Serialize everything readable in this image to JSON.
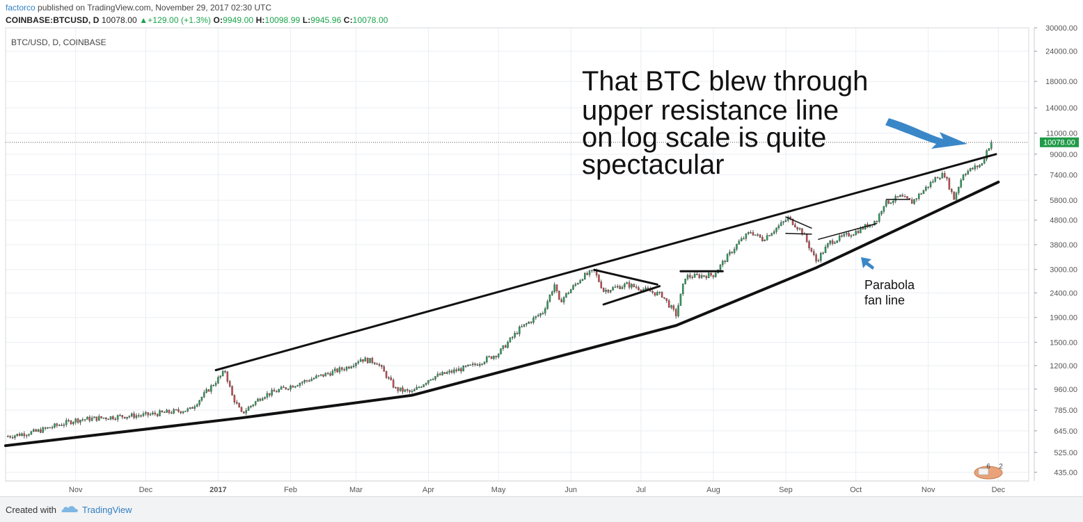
{
  "header": {
    "author": "factorco",
    "published_text": "published on TradingView.com, November 29, 2017 02:30 UTC",
    "symbol": "COINBASE:BTCUSD, D",
    "last": "10078.00",
    "change": "+129.00 (+1.3%)",
    "o_label": "O:",
    "o_value": "9949.00",
    "h_label": "H:",
    "h_value": "10098.99",
    "l_label": "L:",
    "l_value": "9945.96",
    "c_label": "C:",
    "c_value": "10078.00"
  },
  "footer": {
    "created_with": "Created with",
    "brand": "TradingView"
  },
  "annotations": {
    "headline": [
      "That BTC blew through",
      "upper resistance line",
      "on log scale is quite",
      "spectacular"
    ],
    "fan_label": [
      "Parabola",
      "fan line"
    ]
  },
  "chart_data": {
    "type": "candlestick",
    "title": "BTC/USD, D, COINBASE",
    "y_scale": "log",
    "ylim": [
      400,
      30000
    ],
    "y_ticks": [
      435,
      525,
      645,
      785,
      960,
      1200,
      1500,
      1900,
      2400,
      3000,
      3800,
      4800,
      5800,
      7400,
      9000,
      11000,
      14000,
      18000,
      24000,
      30000
    ],
    "y_tick_labels": [
      "435.00",
      "525.00",
      "645.00",
      "785.00",
      "960.00",
      "1200.00",
      "1500.00",
      "1900.00",
      "2400.00",
      "3000.00",
      "3800.00",
      "4800.00",
      "5800.00",
      "7400.00",
      "9000.00",
      "11000.00",
      "14000.00",
      "18000.00",
      "24000.00",
      "30000.00"
    ],
    "x_range": [
      "2016-10-02",
      "2017-12-14"
    ],
    "x_ticks": [
      {
        "date": "2016-11-01",
        "label": "Nov"
      },
      {
        "date": "2016-12-01",
        "label": "Dec"
      },
      {
        "date": "2017-01-01",
        "label": "2017"
      },
      {
        "date": "2017-02-01",
        "label": "Feb"
      },
      {
        "date": "2017-03-01",
        "label": "Mar"
      },
      {
        "date": "2017-04-01",
        "label": "Apr"
      },
      {
        "date": "2017-05-01",
        "label": "May"
      },
      {
        "date": "2017-06-01",
        "label": "Jun"
      },
      {
        "date": "2017-07-01",
        "label": "Jul"
      },
      {
        "date": "2017-08-01",
        "label": "Aug"
      },
      {
        "date": "2017-09-01",
        "label": "Sep"
      },
      {
        "date": "2017-10-01",
        "label": "Oct"
      },
      {
        "date": "2017-11-01",
        "label": "Nov"
      },
      {
        "date": "2017-12-01",
        "label": "Dec"
      }
    ],
    "last_price": 10078,
    "last_price_label": "10078.00",
    "price_path": [
      [
        "2016-10-02",
        610
      ],
      [
        "2016-10-15",
        640
      ],
      [
        "2016-11-01",
        715
      ],
      [
        "2016-11-20",
        740
      ],
      [
        "2016-12-01",
        750
      ],
      [
        "2016-12-20",
        790
      ],
      [
        "2016-12-25",
        890
      ],
      [
        "2017-01-04",
        1140
      ],
      [
        "2017-01-07",
        900
      ],
      [
        "2017-01-11",
        760
      ],
      [
        "2017-01-20",
        900
      ],
      [
        "2017-02-05",
        1020
      ],
      [
        "2017-02-25",
        1180
      ],
      [
        "2017-03-03",
        1280
      ],
      [
        "2017-03-10",
        1240
      ],
      [
        "2017-03-18",
        960
      ],
      [
        "2017-03-25",
        930
      ],
      [
        "2017-04-02",
        1070
      ],
      [
        "2017-04-20",
        1200
      ],
      [
        "2017-05-01",
        1350
      ],
      [
        "2017-05-10",
        1700
      ],
      [
        "2017-05-20",
        2000
      ],
      [
        "2017-05-25",
        2600
      ],
      [
        "2017-05-27",
        2200
      ],
      [
        "2017-06-06",
        2800
      ],
      [
        "2017-06-11",
        2950
      ],
      [
        "2017-06-15",
        2450
      ],
      [
        "2017-06-25",
        2600
      ],
      [
        "2017-07-01",
        2500
      ],
      [
        "2017-07-10",
        2350
      ],
      [
        "2017-07-16",
        1950
      ],
      [
        "2017-07-20",
        2800
      ],
      [
        "2017-08-01",
        2850
      ],
      [
        "2017-08-05",
        3200
      ],
      [
        "2017-08-12",
        3900
      ],
      [
        "2017-08-17",
        4300
      ],
      [
        "2017-08-22",
        4000
      ],
      [
        "2017-08-31",
        4700
      ],
      [
        "2017-09-02",
        4900
      ],
      [
        "2017-09-08",
        4300
      ],
      [
        "2017-09-14",
        3250
      ],
      [
        "2017-09-20",
        3900
      ],
      [
        "2017-10-01",
        4300
      ],
      [
        "2017-10-10",
        4800
      ],
      [
        "2017-10-13",
        5600
      ],
      [
        "2017-10-20",
        6000
      ],
      [
        "2017-10-25",
        5700
      ],
      [
        "2017-11-05",
        7300
      ],
      [
        "2017-11-08",
        7400
      ],
      [
        "2017-11-12",
        5900
      ],
      [
        "2017-11-16",
        7500
      ],
      [
        "2017-11-24",
        8200
      ],
      [
        "2017-11-26",
        9300
      ],
      [
        "2017-11-28",
        10078
      ]
    ],
    "trendlines": [
      {
        "name": "upper-resistance",
        "points": [
          [
            "2016-12-31",
            1150
          ],
          [
            "2017-11-30",
            9000
          ]
        ],
        "width": 3
      },
      {
        "name": "lower-fan",
        "points": [
          [
            "2016-10-02",
            560
          ],
          [
            "2017-01-11",
            730
          ],
          [
            "2017-03-25",
            905
          ],
          [
            "2017-07-16",
            1760
          ],
          [
            "2017-09-14",
            3050
          ],
          [
            "2017-12-01",
            6900
          ]
        ],
        "width": 4
      },
      {
        "name": "triangle-top",
        "points": [
          [
            "2017-06-11",
            2990
          ],
          [
            "2017-07-08",
            2600
          ]
        ],
        "width": 3
      },
      {
        "name": "triangle-bottom",
        "points": [
          [
            "2017-06-15",
            2150
          ],
          [
            "2017-07-09",
            2560
          ]
        ],
        "width": 3
      },
      {
        "name": "flag-top",
        "points": [
          [
            "2017-07-18",
            2950
          ],
          [
            "2017-08-05",
            2950
          ]
        ],
        "width": 3
      },
      {
        "name": "sep-flag-top",
        "points": [
          [
            "2017-09-01",
            4950
          ],
          [
            "2017-09-12",
            4450
          ]
        ],
        "width": 1.5
      },
      {
        "name": "sep-flag-bottom",
        "points": [
          [
            "2017-09-01",
            4230
          ],
          [
            "2017-09-12",
            4200
          ]
        ],
        "width": 1.5
      },
      {
        "name": "sep-channel",
        "points": [
          [
            "2017-09-15",
            4000
          ],
          [
            "2017-10-10",
            4650
          ]
        ],
        "width": 1.5
      },
      {
        "name": "oct-flag",
        "points": [
          [
            "2017-10-14",
            5850
          ],
          [
            "2017-10-24",
            5850
          ]
        ],
        "width": 1.5
      }
    ],
    "colors": {
      "up": "#26a65b",
      "down": "#d44a4a",
      "line": "#111111",
      "arrow": "#3a87c8",
      "grid": "#eaedf2",
      "axis_text": "#555555",
      "price_tag": "#1f9a47"
    }
  }
}
